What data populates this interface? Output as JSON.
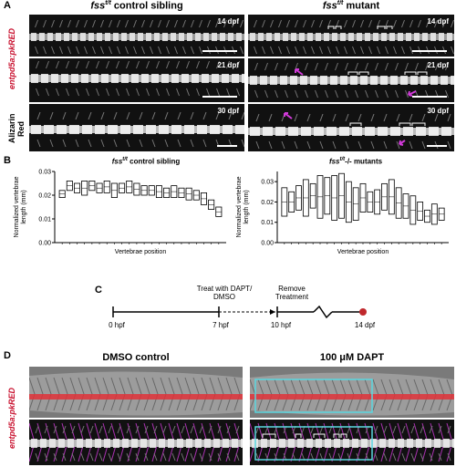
{
  "panelA": {
    "letter": "A",
    "left_title": "fss",
    "left_title_sup": "t/t",
    "left_title_rest": " control sibling",
    "right_title": "fss",
    "right_title_sup": "t/t",
    "right_title_rest": " mutant",
    "row_label_1": "entpd5a:pkRED",
    "row_label_2": "Alizarin Red",
    "stages": [
      "14 dpf",
      "21 dpf",
      "30 dpf"
    ]
  },
  "panelB": {
    "letter": "B",
    "left_title": "fss",
    "left_title_sup": "t/t",
    "left_title_rest": " control sibling",
    "right_title": "fss",
    "right_title_sup": "t/t",
    "right_title_rest": "-/- mutants",
    "ylabel": "Normalized vertebrae length (mm)",
    "xlabel": "Vertebrae position",
    "yticks": [
      "0.03",
      "0.02",
      "0.01",
      "0.00"
    ]
  },
  "chart_data": [
    {
      "type": "boxplot",
      "title": "fss t/t control sibling",
      "xlabel": "Vertebrae position",
      "ylabel": "Normalized vertebrae length (mm)",
      "ylim": [
        0,
        0.03
      ],
      "boxes": [
        [
          0.019,
          0.022
        ],
        [
          0.022,
          0.026
        ],
        [
          0.021,
          0.025
        ],
        [
          0.02,
          0.026
        ],
        [
          0.022,
          0.026
        ],
        [
          0.021,
          0.025
        ],
        [
          0.021,
          0.026
        ],
        [
          0.019,
          0.025
        ],
        [
          0.021,
          0.025
        ],
        [
          0.021,
          0.026
        ],
        [
          0.02,
          0.025
        ],
        [
          0.02,
          0.024
        ],
        [
          0.02,
          0.024
        ],
        [
          0.019,
          0.024
        ],
        [
          0.019,
          0.023
        ],
        [
          0.019,
          0.024
        ],
        [
          0.019,
          0.023
        ],
        [
          0.018,
          0.023
        ],
        [
          0.018,
          0.022
        ],
        [
          0.016,
          0.021
        ],
        [
          0.014,
          0.018
        ],
        [
          0.011,
          0.015
        ]
      ]
    },
    {
      "type": "boxplot",
      "title": "fss t/t -/- mutants",
      "xlabel": "Vertebrae position",
      "ylabel": "Normalized vertebrae length (mm)",
      "ylim": [
        0,
        0.035
      ],
      "boxes": [
        [
          0.013,
          0.027
        ],
        [
          0.015,
          0.025
        ],
        [
          0.016,
          0.028
        ],
        [
          0.013,
          0.031
        ],
        [
          0.017,
          0.029
        ],
        [
          0.012,
          0.033
        ],
        [
          0.014,
          0.032
        ],
        [
          0.011,
          0.033
        ],
        [
          0.012,
          0.034
        ],
        [
          0.01,
          0.03
        ],
        [
          0.011,
          0.027
        ],
        [
          0.015,
          0.029
        ],
        [
          0.015,
          0.025
        ],
        [
          0.014,
          0.026
        ],
        [
          0.016,
          0.029
        ],
        [
          0.014,
          0.031
        ],
        [
          0.012,
          0.027
        ],
        [
          0.012,
          0.024
        ],
        [
          0.009,
          0.023
        ],
        [
          0.011,
          0.02
        ],
        [
          0.01,
          0.016
        ],
        [
          0.009,
          0.019
        ],
        [
          0.011,
          0.017
        ]
      ]
    }
  ],
  "panelC": {
    "letter": "C",
    "labels_top": [
      "Treat with DAPT/\nDMSO",
      "Remove\nTreatment"
    ],
    "treat_line1": "Treat with DAPT/",
    "treat_line2": "DMSO",
    "remove_line1": "Remove",
    "remove_line2": "Treatment",
    "ticks": [
      "0 hpf",
      "7 hpf",
      "10 hpf",
      "14 dpf"
    ]
  },
  "panelD": {
    "letter": "D",
    "left_title": "DMSO control",
    "right_title": "100 μM DAPT",
    "row_label": "entpd5a:pkRED"
  },
  "colors": {
    "red": "#c8102e",
    "magenta": "#d03ad8",
    "cyan": "#5ad7e0",
    "marker": "#c0282d"
  }
}
